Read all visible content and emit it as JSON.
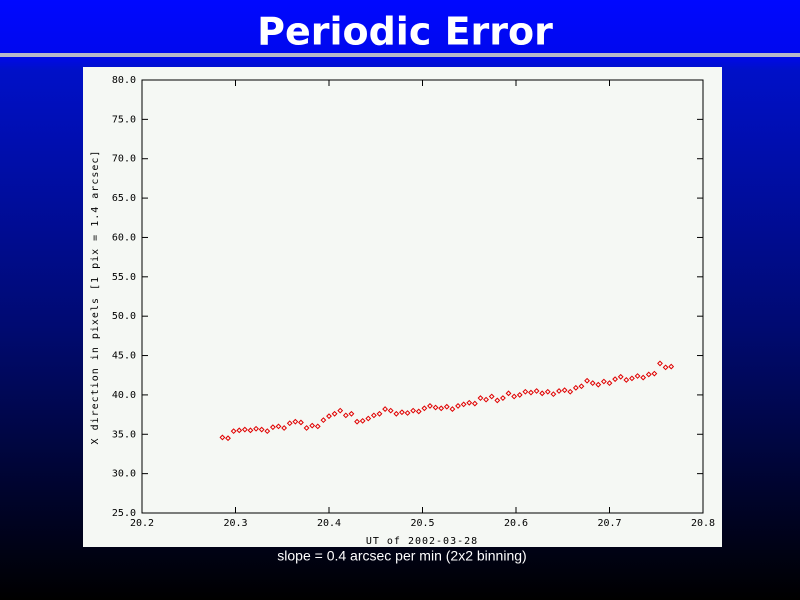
{
  "chart_data": {
    "type": "scatter",
    "title": "Periodic Error",
    "caption": "slope = 0.4 arcsec per min (2x2 binning)",
    "x_label": "UT of 2002-03-28",
    "y_label": "X direction in pixels [1 pix = 1.4 arcsec]",
    "color": "#e00000",
    "xlim": [
      20.2,
      20.8
    ],
    "xticks": [
      20.2,
      20.3,
      20.4,
      20.5,
      20.6,
      20.7,
      20.8
    ],
    "ylim": [
      25,
      80
    ],
    "yticks": [
      {
        "value": 25,
        "label": "25.0"
      },
      {
        "value": 30,
        "label": "30.0"
      },
      {
        "value": 35,
        "label": "35.0"
      },
      {
        "value": 40,
        "label": "40.0"
      },
      {
        "value": 45,
        "label": "45.0"
      },
      {
        "value": 50,
        "label": "50.0"
      },
      {
        "value": 55,
        "label": "55.0"
      },
      {
        "value": 60,
        "label": "60.0"
      },
      {
        "value": 65,
        "label": "65.0"
      },
      {
        "value": 70,
        "label": "70.0"
      },
      {
        "value": 75,
        "label": "75.0"
      },
      {
        "value": 80,
        "label": "80.0"
      }
    ],
    "x": [
      20.286,
      20.292,
      20.298,
      20.304,
      20.31,
      20.316,
      20.322,
      20.328,
      20.334,
      20.34,
      20.346,
      20.352,
      20.358,
      20.364,
      20.37,
      20.376,
      20.382,
      20.388,
      20.394,
      20.4,
      20.406,
      20.412,
      20.418,
      20.424,
      20.43,
      20.436,
      20.442,
      20.448,
      20.454,
      20.46,
      20.466,
      20.472,
      20.478,
      20.484,
      20.49,
      20.496,
      20.502,
      20.508,
      20.514,
      20.52,
      20.526,
      20.532,
      20.538,
      20.544,
      20.55,
      20.556,
      20.562,
      20.568,
      20.574,
      20.58,
      20.586,
      20.592,
      20.598,
      20.604,
      20.61,
      20.616,
      20.622,
      20.628,
      20.634,
      20.64,
      20.646,
      20.652,
      20.658,
      20.664,
      20.67,
      20.676,
      20.682,
      20.688,
      20.694,
      20.7,
      20.706,
      20.712,
      20.718,
      20.724,
      20.73,
      20.736,
      20.742,
      20.748,
      20.754,
      20.76,
      20.766
    ],
    "values": [
      34.6,
      34.5,
      35.4,
      35.5,
      35.6,
      35.5,
      35.7,
      35.6,
      35.4,
      35.9,
      36.0,
      35.8,
      36.4,
      36.6,
      36.5,
      35.8,
      36.1,
      36.0,
      36.8,
      37.3,
      37.6,
      38.0,
      37.4,
      37.6,
      36.6,
      36.7,
      37.0,
      37.4,
      37.6,
      38.2,
      38.0,
      37.6,
      37.8,
      37.7,
      38.0,
      37.9,
      38.3,
      38.6,
      38.4,
      38.3,
      38.5,
      38.2,
      38.6,
      38.8,
      39.0,
      38.9,
      39.6,
      39.4,
      39.8,
      39.3,
      39.6,
      40.2,
      39.8,
      40.0,
      40.4,
      40.3,
      40.5,
      40.2,
      40.4,
      40.1,
      40.5,
      40.6,
      40.4,
      40.9,
      41.1,
      41.8,
      41.5,
      41.3,
      41.7,
      41.5,
      42.0,
      42.3,
      41.9,
      42.1,
      42.4,
      42.2,
      42.6,
      42.7,
      44.0,
      43.5,
      43.6
    ]
  }
}
